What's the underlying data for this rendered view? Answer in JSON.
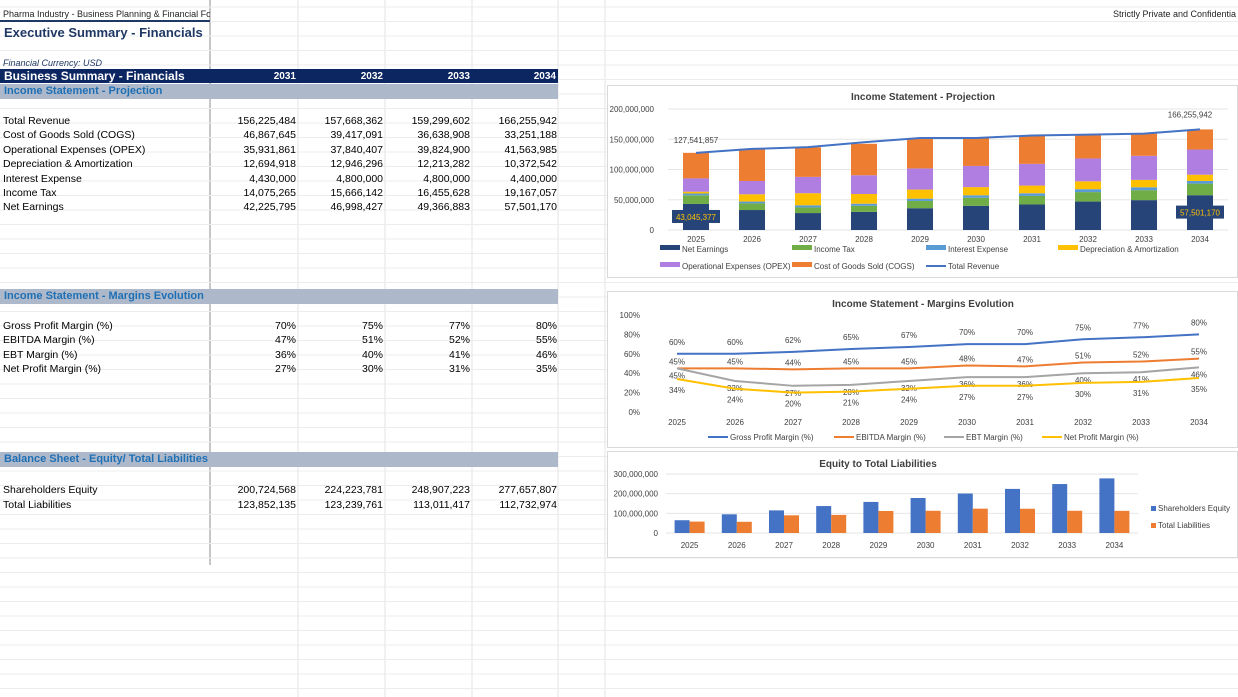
{
  "header": {
    "left": "Pharma Industry - Business Planning & Financial Forec",
    "right": "Strictly Private and Confidentia",
    "title": "Executive Summary - Financials",
    "currency": "Financial Currency: USD"
  },
  "summary": {
    "title": "Business Summary - Financials",
    "years": [
      "2031",
      "2032",
      "2033",
      "2034"
    ]
  },
  "income": {
    "title": "Income Statement - Projection",
    "rows": [
      {
        "label": "Total Revenue",
        "values": [
          "156,225,484",
          "157,668,362",
          "159,299,602",
          "166,255,942"
        ]
      },
      {
        "label": "Cost of Goods Sold (COGS)",
        "values": [
          "46,867,645",
          "39,417,091",
          "36,638,908",
          "33,251,188"
        ]
      },
      {
        "label": "Operational Expenses (OPEX)",
        "values": [
          "35,931,861",
          "37,840,407",
          "39,824,900",
          "41,563,985"
        ]
      },
      {
        "label": "Depreciation & Amortization",
        "values": [
          "12,694,918",
          "12,946,296",
          "12,213,282",
          "10,372,542"
        ]
      },
      {
        "label": "Interest Expense",
        "values": [
          "4,430,000",
          "4,800,000",
          "4,800,000",
          "4,400,000"
        ]
      },
      {
        "label": "Income Tax",
        "values": [
          "14,075,265",
          "15,666,142",
          "16,455,628",
          "19,167,057"
        ]
      },
      {
        "label": "Net Earnings",
        "values": [
          "42,225,795",
          "46,998,427",
          "49,366,883",
          "57,501,170"
        ]
      }
    ]
  },
  "margins": {
    "title": "Income Statement - Margins Evolution",
    "rows": [
      {
        "label": "Gross Profit Margin (%)",
        "values": [
          "70%",
          "75%",
          "77%",
          "80%"
        ]
      },
      {
        "label": "EBITDA Margin (%)",
        "values": [
          "47%",
          "51%",
          "52%",
          "55%"
        ]
      },
      {
        "label": "EBT Margin (%)",
        "values": [
          "36%",
          "40%",
          "41%",
          "46%"
        ]
      },
      {
        "label": "Net Profit Margin (%)",
        "values": [
          "27%",
          "30%",
          "31%",
          "35%"
        ]
      }
    ]
  },
  "balance": {
    "title": "Balance Sheet - Equity/ Total Liabilities",
    "rows": [
      {
        "label": "Shareholders Equity",
        "values": [
          "200,724,568",
          "224,223,781",
          "248,907,223",
          "277,657,807"
        ]
      },
      {
        "label": "Total Liabilities",
        "values": [
          "123,852,135",
          "123,239,761",
          "113,011,417",
          "112,732,974"
        ]
      }
    ]
  },
  "chart_data": [
    {
      "type": "bar",
      "title": "Income Statement - Projection",
      "categories": [
        "2025",
        "2026",
        "2027",
        "2028",
        "2029",
        "2030",
        "2031",
        "2032",
        "2033",
        "2034"
      ],
      "ylim": [
        0,
        200000000
      ],
      "yticks": [
        "0",
        "50,000,000",
        "100,000,000",
        "150,000,000",
        "200,000,000"
      ],
      "stacked": true,
      "series": [
        {
          "name": "Net Earnings",
          "color": "#264478",
          "values": [
            43045377,
            33000000,
            28000000,
            30000000,
            36000000,
            40000000,
            42225795,
            46998427,
            49366883,
            57501170
          ]
        },
        {
          "name": "Income Tax",
          "color": "#70ad47",
          "values": [
            14300000,
            11000000,
            9300000,
            10000000,
            12000000,
            13300000,
            14075265,
            15666142,
            16455628,
            19167057
          ]
        },
        {
          "name": "Interest Expense",
          "color": "#5b9bd5",
          "values": [
            3000000,
            3000000,
            3500000,
            3500000,
            3800000,
            4100000,
            4430000,
            4800000,
            4800000,
            4400000
          ]
        },
        {
          "name": "Depreciation & Amortization",
          "color": "#ffc000",
          "values": [
            3000000,
            12000000,
            20000000,
            16000000,
            15000000,
            13500000,
            12694918,
            12946296,
            12213282,
            10372542
          ]
        },
        {
          "name": "Operational Expenses (OPEX)",
          "color": "#b07ee0",
          "values": [
            22000000,
            22000000,
            27000000,
            31000000,
            35000000,
            35000000,
            35931861,
            37840407,
            39824900,
            41563985
          ]
        },
        {
          "name": "Cost of Goods Sold (COGS)",
          "color": "#ed7d31",
          "values": [
            42196480,
            53000000,
            49000000,
            52000000,
            50000000,
            47000000,
            46867645,
            39417091,
            36638908,
            33251188
          ]
        }
      ],
      "line": {
        "name": "Total Revenue",
        "color": "#4472c4",
        "values": [
          127541857,
          134000000,
          137000000,
          145000000,
          152000000,
          152000000,
          156225484,
          157668362,
          159299602,
          166255942
        ]
      },
      "labels": {
        "first_revenue": "127,541,857",
        "last_revenue": "166,255,942",
        "first_net": "43,045,377",
        "last_net": "57,501,170"
      }
    },
    {
      "type": "line",
      "title": "Income Statement - Margins Evolution",
      "categories": [
        "2025",
        "2026",
        "2027",
        "2028",
        "2029",
        "2030",
        "2031",
        "2032",
        "2033",
        "2034"
      ],
      "ylim": [
        0,
        100
      ],
      "yticks": [
        "0%",
        "20%",
        "40%",
        "60%",
        "80%",
        "100%"
      ],
      "series": [
        {
          "name": "Gross Profit Margin (%)",
          "color": "#4472c4",
          "values": [
            60,
            60,
            62,
            65,
            67,
            70,
            70,
            75,
            77,
            80
          ]
        },
        {
          "name": "EBITDA Margin (%)",
          "color": "#ed7d31",
          "values": [
            45,
            45,
            44,
            45,
            45,
            48,
            47,
            51,
            52,
            55
          ]
        },
        {
          "name": "EBT Margin (%)",
          "color": "#a5a5a5",
          "values": [
            45,
            32,
            27,
            28,
            32,
            36,
            36,
            40,
            41,
            46
          ]
        },
        {
          "name": "Net Profit Margin (%)",
          "color": "#ffc000",
          "values": [
            34,
            24,
            20,
            21,
            24,
            27,
            27,
            30,
            31,
            35
          ]
        }
      ]
    },
    {
      "type": "bar",
      "title": "Equity to Total Liabilities",
      "categories": [
        "2025",
        "2026",
        "2027",
        "2028",
        "2029",
        "2030",
        "2031",
        "2032",
        "2033",
        "2034"
      ],
      "ylim": [
        0,
        300000000
      ],
      "yticks": [
        "0",
        "100,000,000",
        "200,000,000",
        "300,000,000"
      ],
      "series": [
        {
          "name": "Shareholders Equity",
          "color": "#4472c4",
          "values": [
            65000000,
            95000000,
            115000000,
            137000000,
            158000000,
            178000000,
            200724568,
            224223781,
            248907223,
            277657807
          ]
        },
        {
          "name": "Total Liabilities",
          "color": "#ed7d31",
          "values": [
            58000000,
            57000000,
            90000000,
            92000000,
            112000000,
            113000000,
            123852135,
            123239761,
            113011417,
            112732974
          ]
        }
      ]
    }
  ]
}
